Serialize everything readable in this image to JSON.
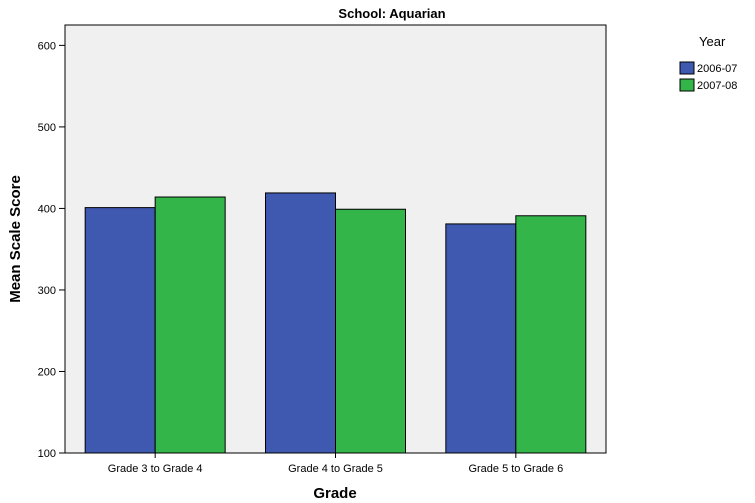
{
  "chart_data": {
    "type": "bar",
    "title": "School: Aquarian",
    "xlabel": "Grade",
    "ylabel": "Mean Scale Score",
    "categories": [
      "Grade 3 to Grade 4",
      "Grade 4 to Grade 5",
      "Grade 5 to Grade 6"
    ],
    "series": [
      {
        "name": "2006-07",
        "color": "#3f58b0",
        "values": [
          401,
          419,
          381
        ]
      },
      {
        "name": "2007-08",
        "color": "#33b54a",
        "values": [
          414,
          399,
          391
        ]
      }
    ],
    "ylim": [
      100,
      625
    ],
    "yticks": [
      100,
      200,
      300,
      400,
      500,
      600
    ],
    "grid": false,
    "plot_background": "#f0f0f0",
    "legend": {
      "title": "Year",
      "position": "top-right"
    }
  }
}
